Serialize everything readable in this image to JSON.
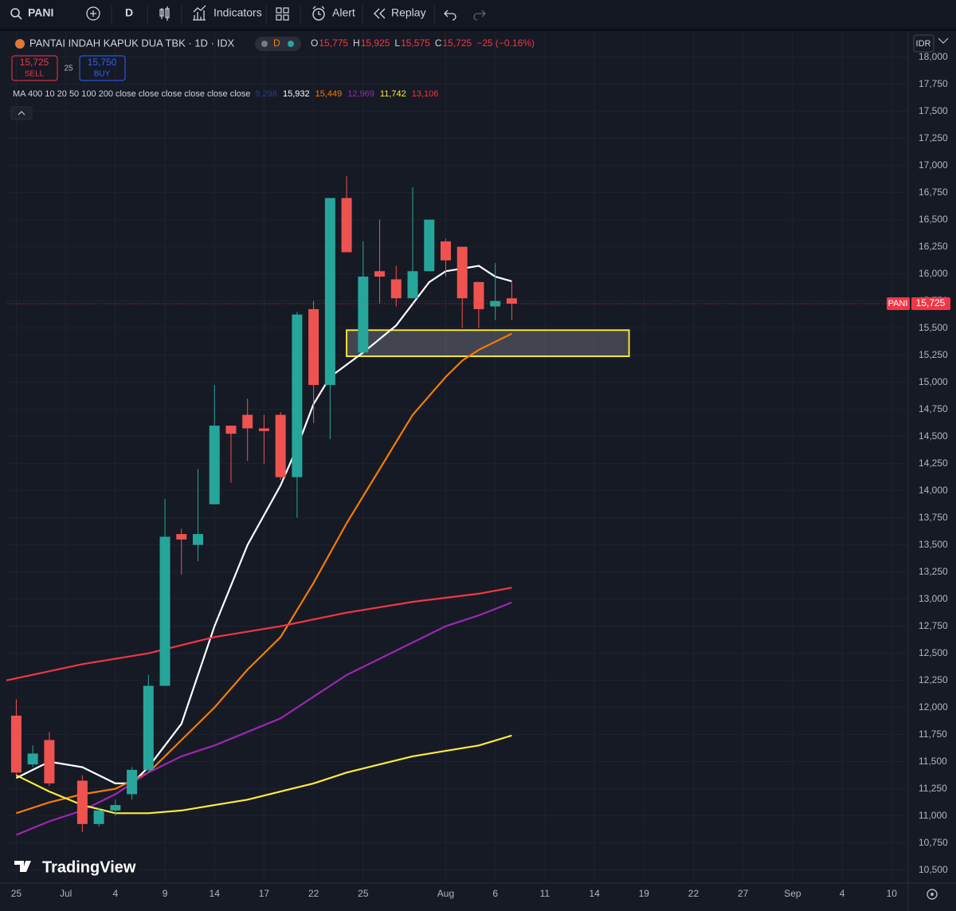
{
  "toolbar": {
    "symbol": "PANI",
    "interval": "D",
    "indicators": "Indicators",
    "alert": "Alert",
    "replay": "Replay"
  },
  "legend": {
    "title": "PANTAI INDAH KAPUK DUA TBK · 1D · IDX",
    "badge": "D",
    "ohlc": [
      {
        "label": "O",
        "value": "15,775"
      },
      {
        "label": "H",
        "value": "15,925"
      },
      {
        "label": "L",
        "value": "15,575"
      },
      {
        "label": "C",
        "value": "15,725"
      }
    ],
    "change": "−25 (−0.16%)",
    "sell_price": "15,725",
    "sell": "SELL",
    "spread": "25",
    "buy_price": "15,750",
    "buy": "BUY",
    "ma_title": "MA 400 10 20 50 100 200 close close close close close close",
    "ma_values": [
      {
        "text": "9,298",
        "color": "#2a3a9a"
      },
      {
        "text": "15,932",
        "color": "#ffffff"
      },
      {
        "text": "15,449",
        "color": "#f57c00"
      },
      {
        "text": "12,969",
        "color": "#9c27b0"
      },
      {
        "text": "11,742",
        "color": "#ffeb3b"
      },
      {
        "text": "13,106",
        "color": "#f23645"
      }
    ]
  },
  "currency": "IDR",
  "watermark": "TradingView",
  "chart_data": {
    "type": "candlestick",
    "x": [
      0,
      1,
      2,
      4,
      5,
      6,
      7,
      8,
      9,
      10,
      11,
      12,
      13,
      14,
      15,
      16,
      17,
      18,
      19,
      20,
      21,
      22,
      23,
      24,
      25,
      26,
      27,
      28,
      29,
      30
    ],
    "open": [
      11925,
      11475,
      11700,
      11325,
      10925,
      11050,
      11200,
      11425,
      12200,
      13600,
      13500,
      13875,
      14600,
      14700,
      14575,
      14700,
      14125,
      15675,
      14975,
      16700,
      15275,
      16025,
      15950,
      15775,
      16025,
      16300,
      16250,
      15925,
      15700,
      15775
    ],
    "high": [
      12075,
      11650,
      11775,
      11375,
      11075,
      11150,
      11450,
      12300,
      13925,
      13650,
      14200,
      14975,
      14600,
      14850,
      14700,
      14725,
      15650,
      15750,
      16700,
      16900,
      16300,
      16500,
      16075,
      16800,
      16500,
      16325,
      16250,
      15925,
      16100,
      15925
    ],
    "low": [
      11375,
      11450,
      11275,
      10850,
      10900,
      11000,
      11150,
      11400,
      12200,
      13225,
      13350,
      13875,
      14075,
      14275,
      14250,
      14100,
      13750,
      14625,
      14475,
      16200,
      15250,
      15725,
      15700,
      15775,
      16025,
      15975,
      15500,
      15500,
      15575,
      15575
    ],
    "close": [
      11400,
      11575,
      11300,
      10925,
      11050,
      11100,
      11425,
      12200,
      13575,
      13550,
      13600,
      14600,
      14525,
      14575,
      14550,
      14125,
      15625,
      14975,
      16700,
      16200,
      15975,
      15975,
      15775,
      16025,
      16500,
      16125,
      15775,
      15675,
      15750,
      15725
    ],
    "up_color": "#26a69a",
    "down_color": "#ef5350",
    "lines": [
      {
        "color": "#ffffff",
        "x": [
          0,
          2,
          4,
          6,
          7,
          8,
          10,
          12,
          14,
          16,
          17,
          18,
          19,
          21,
          23,
          25,
          26,
          27,
          28,
          29,
          30
        ],
        "values": [
          11350,
          11500,
          11450,
          11300,
          11300,
          11450,
          11850,
          12750,
          13500,
          14050,
          14400,
          14800,
          15050,
          15275,
          15525,
          15925,
          16025,
          16050,
          16075,
          15975,
          15932
        ]
      },
      {
        "color": "#f57c00",
        "x": [
          0,
          2,
          4,
          6,
          8,
          10,
          12,
          14,
          16,
          18,
          20,
          22,
          24,
          26,
          27,
          28,
          30
        ],
        "values": [
          11025,
          11125,
          11200,
          11250,
          11400,
          11700,
          12000,
          12350,
          12650,
          13150,
          13700,
          14200,
          14700,
          15050,
          15200,
          15300,
          15449
        ]
      },
      {
        "color": "#9c27b0",
        "x": [
          0,
          2,
          4,
          6,
          8,
          10,
          12,
          14,
          16,
          18,
          20,
          22,
          24,
          26,
          28,
          30
        ],
        "values": [
          10825,
          10950,
          11050,
          11200,
          11400,
          11550,
          11650,
          11775,
          11900,
          12100,
          12300,
          12450,
          12600,
          12750,
          12850,
          12969
        ]
      },
      {
        "color": "#ffeb3b",
        "x": [
          0,
          2,
          4,
          6,
          8,
          10,
          12,
          14,
          16,
          18,
          20,
          22,
          24,
          26,
          28,
          30
        ],
        "values": [
          11375,
          11225,
          11100,
          11025,
          11025,
          11050,
          11100,
          11150,
          11225,
          11300,
          11400,
          11475,
          11550,
          11600,
          11650,
          11742
        ]
      },
      {
        "color": "#f23645",
        "x": [
          -0.6,
          4,
          8,
          12,
          16,
          20,
          24,
          28,
          30
        ],
        "values": [
          12250,
          12400,
          12500,
          12650,
          12750,
          12875,
          12975,
          13050,
          13106
        ]
      }
    ],
    "zones": [
      {
        "x": [
          20,
          37.1
        ],
        "y": [
          15240,
          15481
        ],
        "color": "#f5e52a"
      }
    ],
    "last_price": {
      "label": "PANI",
      "value": 15725,
      "value_label": "15,725",
      "color": "#f23645"
    },
    "xlim": [
      -0.6,
      54
    ],
    "ylim": [
      10380,
      18240
    ],
    "grid": true,
    "xticks": [
      {
        "value": 0,
        "label": "25"
      },
      {
        "value": 3,
        "label": "Jul"
      },
      {
        "value": 6,
        "label": "4"
      },
      {
        "value": 9,
        "label": "9"
      },
      {
        "value": 12,
        "label": "14"
      },
      {
        "value": 15,
        "label": "17"
      },
      {
        "value": 18,
        "label": "22"
      },
      {
        "value": 21,
        "label": "25"
      },
      {
        "value": 26,
        "label": "Aug"
      },
      {
        "value": 29,
        "label": "6"
      },
      {
        "value": 32,
        "label": "11"
      },
      {
        "value": 35,
        "label": "14"
      },
      {
        "value": 38,
        "label": "19"
      },
      {
        "value": 41,
        "label": "22"
      },
      {
        "value": 44,
        "label": "27"
      },
      {
        "value": 47,
        "label": "Sep"
      },
      {
        "value": 50,
        "label": "4"
      },
      {
        "value": 53,
        "label": "10"
      }
    ],
    "yticks": [
      {
        "value": 10500,
        "label": "10,500"
      },
      {
        "value": 10750,
        "label": "10,750"
      },
      {
        "value": 11000,
        "label": "11,000"
      },
      {
        "value": 11250,
        "label": "11,250"
      },
      {
        "value": 11500,
        "label": "11,500"
      },
      {
        "value": 11750,
        "label": "11,750"
      },
      {
        "value": 12000,
        "label": "12,000"
      },
      {
        "value": 12250,
        "label": "12,250"
      },
      {
        "value": 12500,
        "label": "12,500"
      },
      {
        "value": 12750,
        "label": "12,750"
      },
      {
        "value": 13000,
        "label": "13,000"
      },
      {
        "value": 13250,
        "label": "13,250"
      },
      {
        "value": 13500,
        "label": "13,500"
      },
      {
        "value": 13750,
        "label": "13,750"
      },
      {
        "value": 14000,
        "label": "14,000"
      },
      {
        "value": 14250,
        "label": "14,250"
      },
      {
        "value": 14500,
        "label": "14,500"
      },
      {
        "value": 14750,
        "label": "14,750"
      },
      {
        "value": 15000,
        "label": "15,000"
      },
      {
        "value": 15250,
        "label": "15,250"
      },
      {
        "value": 15500,
        "label": "15,500"
      },
      {
        "value": 15750,
        "label": "15,750"
      },
      {
        "value": 16000,
        "label": "16,000"
      },
      {
        "value": 16250,
        "label": "16,250"
      },
      {
        "value": 16500,
        "label": "16,500"
      },
      {
        "value": 16750,
        "label": "16,750"
      },
      {
        "value": 17000,
        "label": "17,000"
      },
      {
        "value": 17250,
        "label": "17,250"
      },
      {
        "value": 17500,
        "label": "17,500"
      },
      {
        "value": 17750,
        "label": "17,750"
      },
      {
        "value": 18000,
        "label": "18,000"
      }
    ]
  }
}
